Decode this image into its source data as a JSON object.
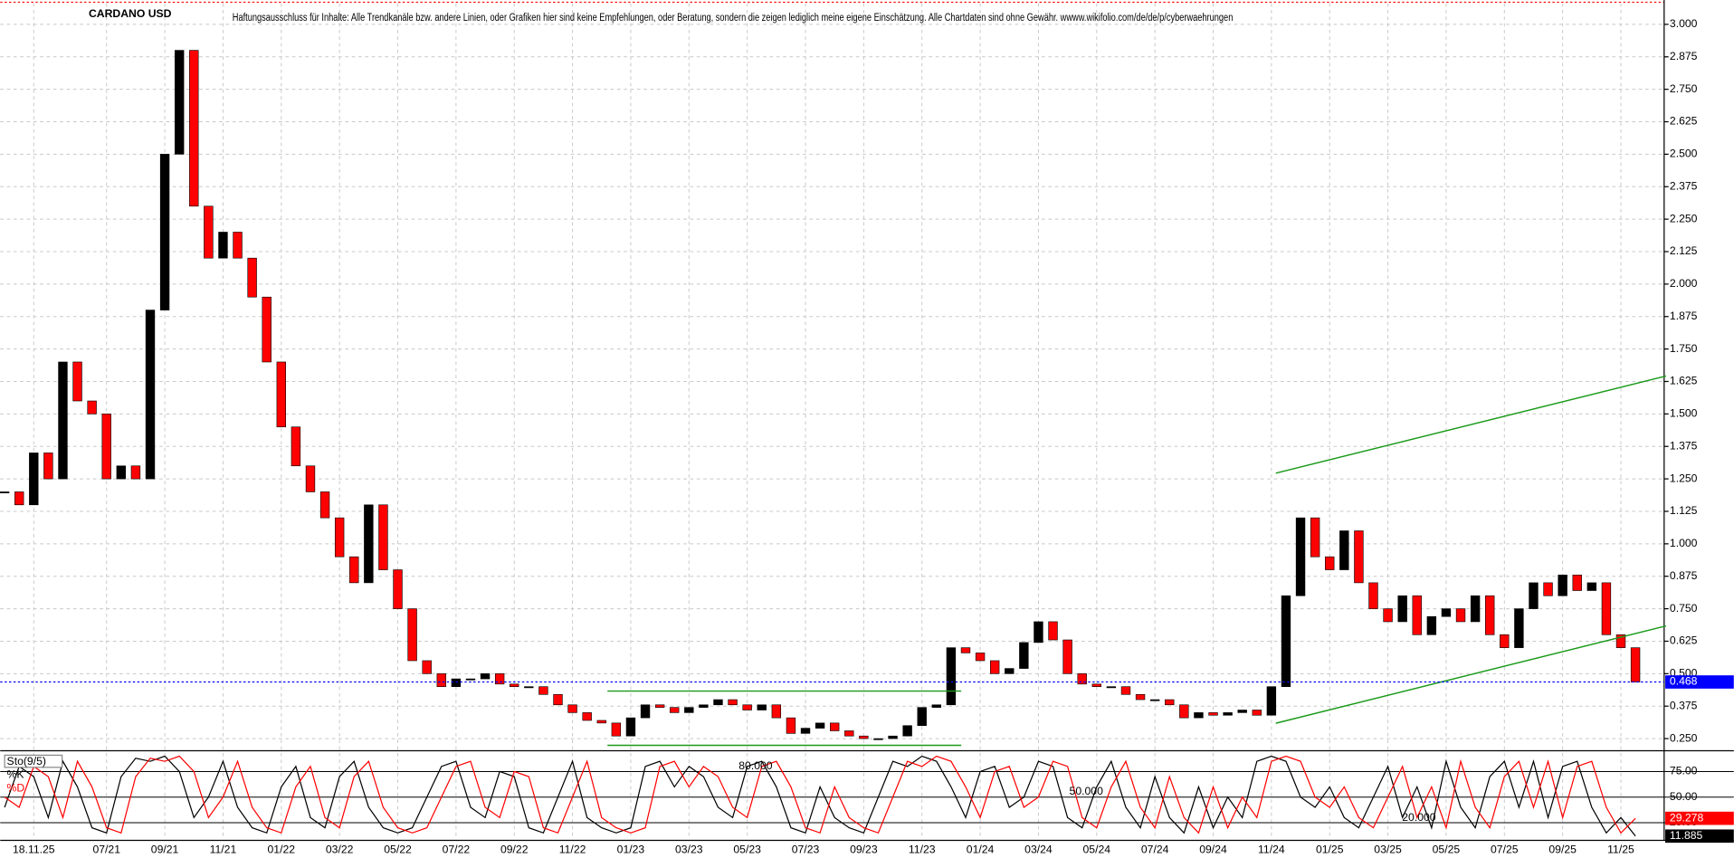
{
  "chart_data": [
    {
      "type": "candlestick",
      "title": "CARDANO USD",
      "subtitle": "Haftungsausschluss für Inhalte: Alle Trendkanäle bzw. andere Linien, oder Grafiken hier sind keine Empfehlungen, oder Beratung, sondern die zeigen lediglich meine eigene Einschätzung. Alle Chartdaten sind ohne Gewähr. wwww.wikifolio.com/de/de/p/cyberwaehrungen",
      "categories": [
        null,
        null,
        "18.11.25",
        null,
        null,
        null,
        null,
        "07/21",
        null,
        null,
        null,
        "09/21",
        null,
        null,
        null,
        "11/21",
        null,
        null,
        null,
        "01/22",
        null,
        null,
        null,
        "03/22",
        null,
        null,
        null,
        "05/22",
        null,
        null,
        null,
        "07/22",
        null,
        null,
        null,
        "09/22",
        null,
        null,
        null,
        "11/22",
        null,
        null,
        null,
        "01/23",
        null,
        null,
        null,
        "03/23",
        null,
        null,
        null,
        "05/23",
        null,
        null,
        null,
        "07/23",
        null,
        null,
        null,
        "09/23",
        null,
        null,
        null,
        "11/23",
        null,
        null,
        null,
        "01/24",
        null,
        null,
        null,
        "03/24",
        null,
        null,
        null,
        "05/24",
        null,
        null,
        null,
        "07/24",
        null,
        null,
        null,
        "09/24",
        null,
        null,
        null,
        "11/24",
        null,
        null,
        null,
        "01/25",
        null,
        null,
        null,
        "03/25",
        null,
        null,
        null,
        "05/25",
        null,
        null,
        null,
        "07/25",
        null,
        null,
        null,
        "09/25",
        null,
        null,
        null,
        "11/25",
        null
      ],
      "values": [
        1.2,
        1.15,
        1.35,
        1.25,
        1.7,
        1.55,
        1.5,
        1.25,
        1.3,
        1.25,
        1.9,
        2.5,
        2.9,
        2.3,
        2.1,
        2.2,
        2.1,
        1.95,
        1.7,
        1.45,
        1.3,
        1.2,
        1.1,
        0.95,
        0.85,
        1.15,
        0.9,
        0.75,
        0.55,
        0.5,
        0.45,
        0.48,
        0.48,
        0.5,
        0.46,
        0.45,
        0.45,
        0.42,
        0.38,
        0.35,
        0.32,
        0.31,
        0.26,
        0.33,
        0.38,
        0.37,
        0.35,
        0.37,
        0.38,
        0.4,
        0.38,
        0.36,
        0.38,
        0.33,
        0.27,
        0.29,
        0.31,
        0.28,
        0.26,
        0.25,
        0.25,
        0.26,
        0.3,
        0.37,
        0.38,
        0.6,
        0.58,
        0.55,
        0.5,
        0.52,
        0.62,
        0.7,
        0.63,
        0.5,
        0.46,
        0.45,
        0.45,
        0.42,
        0.4,
        0.4,
        0.38,
        0.33,
        0.35,
        0.34,
        0.35,
        0.36,
        0.34,
        0.45,
        0.8,
        1.1,
        0.95,
        0.9,
        1.05,
        0.85,
        0.75,
        0.7,
        0.8,
        0.65,
        0.72,
        0.75,
        0.7,
        0.8,
        0.65,
        0.6,
        0.75,
        0.85,
        0.8,
        0.88,
        0.82,
        0.85,
        0.65,
        0.6,
        0.468
      ],
      "up_color": "#000000",
      "down_color": "#ff0000",
      "ylim": [
        0.216,
        3.081
      ],
      "yticks": [
        {
          "value": 0.25,
          "label": "0.250"
        },
        {
          "value": 0.375,
          "label": "0.375"
        },
        {
          "value": 0.5,
          "label": "0.500"
        },
        {
          "value": 0.625,
          "label": "0.625"
        },
        {
          "value": 0.75,
          "label": "0.750"
        },
        {
          "value": 0.875,
          "label": "0.875"
        },
        {
          "value": 1,
          "label": "1.000"
        },
        {
          "value": 1.125,
          "label": "1.125"
        },
        {
          "value": 1.25,
          "label": "1.250"
        },
        {
          "value": 1.375,
          "label": "1.375"
        },
        {
          "value": 1.5,
          "label": "1.500"
        },
        {
          "value": 1.625,
          "label": "1.625"
        },
        {
          "value": 1.75,
          "label": "1.750"
        },
        {
          "value": 1.875,
          "label": "1.875"
        },
        {
          "value": 2,
          "label": "2.000"
        },
        {
          "value": 2.125,
          "label": "2.125"
        },
        {
          "value": 2.25,
          "label": "2.250"
        },
        {
          "value": 2.375,
          "label": "2.375"
        },
        {
          "value": 2.5,
          "label": "2.500"
        },
        {
          "value": 2.625,
          "label": "2.625"
        },
        {
          "value": 2.75,
          "label": "2.750"
        },
        {
          "value": 2.875,
          "label": "2.875"
        },
        {
          "value": 3,
          "label": "3.000"
        }
      ],
      "grid": true,
      "last_color": "#0000ff",
      "trend_color": "#1a9a1a",
      "trendlines": [
        {
          "x": [
            41.4,
            65.7
          ],
          "y": [
            0.433,
            0.433
          ]
        },
        {
          "x": [
            41.4,
            65.7
          ],
          "y": [
            0.224,
            0.224
          ]
        },
        {
          "x": [
            87.3,
            114.1
          ],
          "y": [
            1.272,
            1.646
          ]
        },
        {
          "x": [
            87.3,
            114.1
          ],
          "y": [
            0.309,
            0.684
          ]
        }
      ]
    },
    {
      "type": "line",
      "title": "Sto(9/5)",
      "series": [
        {
          "name": "%K",
          "color": "#000000",
          "values": [
            40,
            80,
            70,
            30,
            85,
            60,
            20,
            15,
            70,
            88,
            85,
            90,
            75,
            30,
            50,
            85,
            40,
            20,
            15,
            60,
            80,
            30,
            20,
            70,
            85,
            40,
            20,
            15,
            20,
            50,
            80,
            85,
            40,
            30,
            75,
            70,
            20,
            15,
            50,
            85,
            30,
            20,
            15,
            20,
            80,
            85,
            60,
            80,
            70,
            40,
            30,
            80,
            85,
            60,
            20,
            15,
            60,
            30,
            20,
            15,
            50,
            85,
            80,
            90,
            85,
            60,
            30,
            75,
            80,
            40,
            50,
            85,
            80,
            30,
            20,
            60,
            85,
            40,
            20,
            70,
            30,
            15,
            60,
            20,
            50,
            30,
            85,
            90,
            85,
            50,
            40,
            60,
            30,
            20,
            50,
            80,
            30,
            60,
            20,
            85,
            40,
            20,
            70,
            85,
            40,
            85,
            30,
            80,
            85,
            40,
            15,
            30,
            11.885
          ]
        },
        {
          "name": "%D",
          "color": "#ff0000",
          "values": [
            50,
            40,
            80,
            70,
            30,
            85,
            60,
            20,
            15,
            70,
            88,
            85,
            90,
            75,
            30,
            50,
            85,
            40,
            20,
            15,
            60,
            80,
            30,
            20,
            70,
            85,
            40,
            20,
            15,
            20,
            50,
            80,
            85,
            40,
            30,
            75,
            70,
            20,
            15,
            50,
            85,
            30,
            20,
            15,
            20,
            80,
            85,
            60,
            80,
            70,
            40,
            30,
            80,
            85,
            60,
            20,
            15,
            60,
            30,
            20,
            15,
            50,
            85,
            80,
            90,
            85,
            60,
            30,
            75,
            80,
            40,
            50,
            85,
            80,
            30,
            20,
            60,
            85,
            40,
            20,
            70,
            30,
            15,
            60,
            20,
            50,
            30,
            85,
            90,
            85,
            50,
            40,
            60,
            30,
            20,
            50,
            80,
            30,
            60,
            20,
            85,
            40,
            20,
            70,
            85,
            40,
            85,
            30,
            80,
            85,
            40,
            15,
            29.278
          ]
        }
      ],
      "ylim": [
        11,
        91
      ],
      "yticks": [
        {
          "value": 25,
          "label": "25.00"
        },
        {
          "value": 50,
          "label": "50.00"
        },
        {
          "value": 75,
          "label": "75.00"
        }
      ],
      "annotations": [
        "80.000",
        "50.000",
        "20.000"
      ]
    }
  ]
}
